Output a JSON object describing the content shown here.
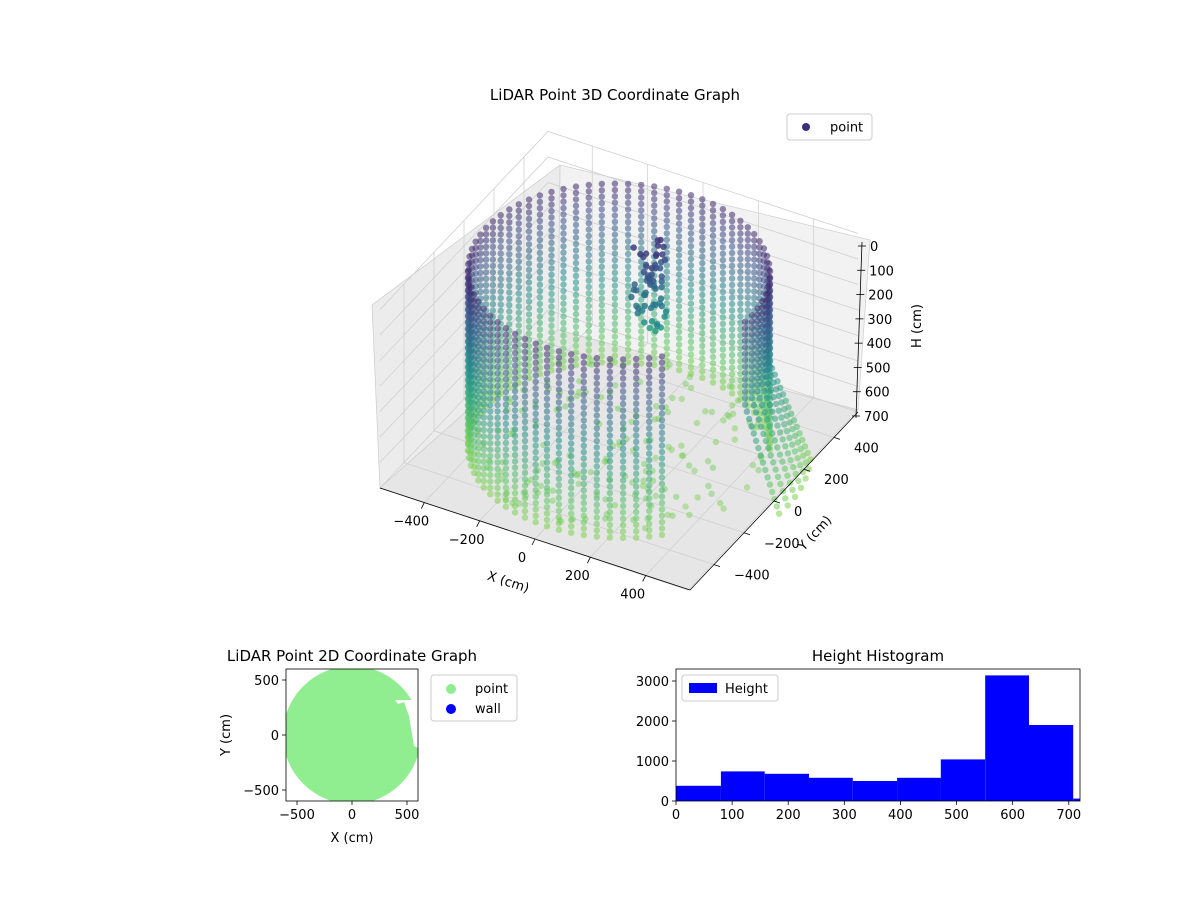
{
  "chart_data": [
    {
      "type": "scatter3d",
      "title": "LiDAR Point 3D Coordinate Graph",
      "xlabel": "X (cm)",
      "ylabel": "Y (cm)",
      "zlabel": "H (cm)",
      "xlim": [
        -560,
        560
      ],
      "ylim": [
        -560,
        560
      ],
      "zlim": [
        0,
        700
      ],
      "z_axis_inverted": true,
      "xticks": [
        "−400",
        "−200",
        "0",
        "200",
        "400"
      ],
      "yticks": [
        "−400",
        "−200",
        "0",
        "200",
        "400"
      ],
      "zticks": [
        "0",
        "100",
        "200",
        "300",
        "400",
        "500",
        "600",
        "700"
      ],
      "legend": {
        "labels": [
          "point"
        ],
        "placement": "upper-right"
      },
      "colormap": "viridis",
      "color_scale": "by height",
      "shape": {
        "wall_radius_cm": 480,
        "height_range_cm": [
          0,
          700
        ],
        "azimuth_step_deg": 5,
        "height_step_cm": 25,
        "door_gap_azimuth_deg": [
          -45,
          -5
        ],
        "door_protrusion_azimuth_deg": [
          -5,
          25
        ],
        "floor_point_count": 160,
        "object_point_count": 60
      },
      "colors": {
        "point": "#3b2f7f",
        "grid": "#d0d0d0",
        "pane": "#f2f2f2"
      }
    },
    {
      "type": "scatter",
      "title": "LiDAR Point 2D Coordinate Graph",
      "xlabel": "X (cm)",
      "ylabel": "Y (cm)",
      "xlim": [
        -600,
        600
      ],
      "ylim": [
        -600,
        600
      ],
      "xticks": [
        "−500",
        "0",
        "500"
      ],
      "yticks": [
        "500",
        "0",
        "−500"
      ],
      "series": [
        {
          "name": "point",
          "color": "#90ee90"
        },
        {
          "name": "wall",
          "color": "#0000ff"
        }
      ],
      "shape": {
        "radius_cm": 600,
        "notch_x_cm": [
          400,
          600
        ],
        "notch_y_cm": [
          -120,
          300
        ]
      },
      "legend": {
        "placement": "outside-right"
      }
    },
    {
      "type": "bar",
      "title": "Height Histogram",
      "xlabel": "",
      "ylabel": "",
      "xlim": [
        0,
        720
      ],
      "ylim": [
        0,
        3300
      ],
      "xticks": [
        "0",
        "100",
        "200",
        "300",
        "400",
        "500",
        "600",
        "700"
      ],
      "yticks": [
        "0",
        "1000",
        "2000",
        "3000"
      ],
      "bins": [
        {
          "start": 0,
          "end": 80,
          "count": 380
        },
        {
          "start": 80,
          "end": 158,
          "count": 740
        },
        {
          "start": 158,
          "end": 237,
          "count": 680
        },
        {
          "start": 237,
          "end": 315,
          "count": 580
        },
        {
          "start": 315,
          "end": 394,
          "count": 500
        },
        {
          "start": 394,
          "end": 472,
          "count": 580
        },
        {
          "start": 472,
          "end": 551,
          "count": 1040
        },
        {
          "start": 551,
          "end": 629,
          "count": 3140
        },
        {
          "start": 629,
          "end": 708,
          "count": 1900
        },
        {
          "start": 708,
          "end": 720,
          "count": 60
        }
      ],
      "legend": {
        "labels": [
          "Height"
        ],
        "placement": "upper-left"
      },
      "colors": {
        "bar": "#0000ff"
      }
    }
  ]
}
